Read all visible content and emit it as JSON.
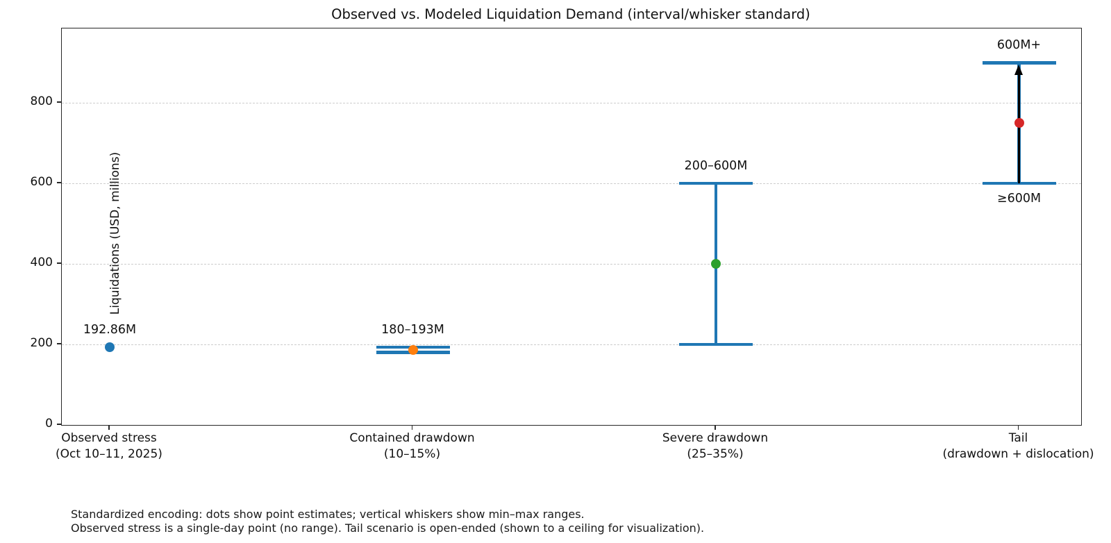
{
  "title": "Observed vs. Modeled Liquidation Demand (interval/whisker standard)",
  "ylabel": "Liquidations (USD, millions)",
  "footnote": {
    "line1": "Standardized encoding: dots show point estimates; vertical whiskers show min–max ranges.",
    "line2": "Observed stress is a single-day point (no range). Tail scenario is open-ended (shown to a ceiling for visualization)."
  },
  "chart_data": {
    "type": "scatter",
    "title": "Observed vs. Modeled Liquidation Demand (interval/whisker standard)",
    "xlabel": "",
    "ylabel": "Liquidations (USD, millions)",
    "ylim": [
      0,
      985
    ],
    "yticks": [
      0,
      200,
      400,
      600,
      800
    ],
    "grid": "horizontal-dashed",
    "gridline_color": "#cccccc",
    "whisker_color": "#1f77b4",
    "arrow_color": "#000000",
    "categories": [
      {
        "label_lines": [
          "Observed stress",
          "(Oct 10–11, 2025)"
        ],
        "point": 192.86,
        "range": null,
        "open_ended": false,
        "point_color": "#1f77b4",
        "annotation_above": "192.86M",
        "annotation_below": null
      },
      {
        "label_lines": [
          "Contained drawdown",
          "(10–15%)"
        ],
        "point": 186.5,
        "range": [
          180,
          193
        ],
        "open_ended": false,
        "point_color": "#ff7f0e",
        "annotation_above": "180–193M",
        "annotation_below": null
      },
      {
        "label_lines": [
          "Severe drawdown",
          "(25–35%)"
        ],
        "point": 400,
        "range": [
          200,
          600
        ],
        "open_ended": false,
        "point_color": "#2ca02c",
        "annotation_above": "200–600M",
        "annotation_below": null
      },
      {
        "label_lines": [
          "Tail",
          "(drawdown + dislocation)"
        ],
        "point": 750,
        "range": [
          600,
          900
        ],
        "open_ended": true,
        "ceiling_note": "shown to ceiling of 900 for visualization",
        "point_color": "#d62728",
        "annotation_above": "600M+",
        "annotation_below": "≥600M"
      }
    ]
  }
}
